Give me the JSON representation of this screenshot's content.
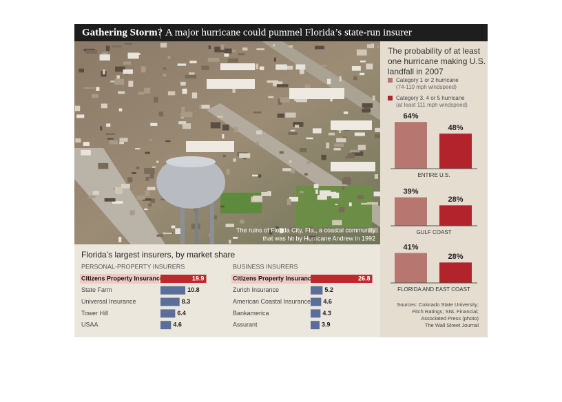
{
  "header": {
    "title": "Gathering Storm?",
    "subtitle": "A major hurricane could pummel Florida’s state-run insurer"
  },
  "photo_caption": [
    "The ruins of Florida City, Fla., a coastal community",
    "that was hit by Hurricane Andrew in 1992"
  ],
  "insurers_title": "Florida’s largest insurers, by market share",
  "chart_data": [
    {
      "type": "bar",
      "title": [
        "The probability of at least",
        "one hurricane making U.S.",
        "landfall in 2007"
      ],
      "categories": [
        "ENTIRE U.S.",
        "GULF COAST",
        "FLORIDA AND EAST COAST"
      ],
      "series": [
        {
          "name": "Category 1 or 2 hurricane",
          "detail": "(74-110 mph windspeed)",
          "color": "#b87670",
          "values": [
            64,
            39,
            41
          ],
          "value_labels": [
            "64%",
            "39%",
            "41%"
          ]
        },
        {
          "name": "Category 3, 4 or 5 hurricane",
          "detail": "(at least 111 mph windspeed)",
          "color": "#b3232b",
          "values": [
            48,
            28,
            28
          ],
          "value_labels": [
            "48%",
            "28%",
            "28%"
          ]
        }
      ]
    },
    {
      "type": "barh",
      "title": "PERSONAL-PROPERTY INSURERS",
      "categories": [
        "Citizens Property Insurance",
        "State Farm",
        "Universal Insurance",
        "Tower Hill",
        "USAA"
      ],
      "values": [
        19.9,
        10.8,
        8.3,
        6.4,
        4.6
      ],
      "colors": [
        "#c1272d",
        "#5b6e99",
        "#5b6e99",
        "#5b6e99",
        "#5b6e99"
      ]
    },
    {
      "type": "barh",
      "title": "BUSINESS INSURERS",
      "categories": [
        "Citizens Property Insurance",
        "Zurich Insurance",
        "American Coastal Insurance",
        "Bankamerica",
        "Assurant"
      ],
      "values": [
        26.8,
        5.2,
        4.6,
        4.3,
        3.9
      ],
      "colors": [
        "#c1272d",
        "#5b6e99",
        "#5b6e99",
        "#5b6e99",
        "#5b6e99"
      ]
    }
  ],
  "sources": [
    "Sources: Colorado State University;",
    "Fitch Ratings; SNL Financial;",
    "Associated Press (photo)"
  ],
  "credit": "The Wall Street Journal"
}
